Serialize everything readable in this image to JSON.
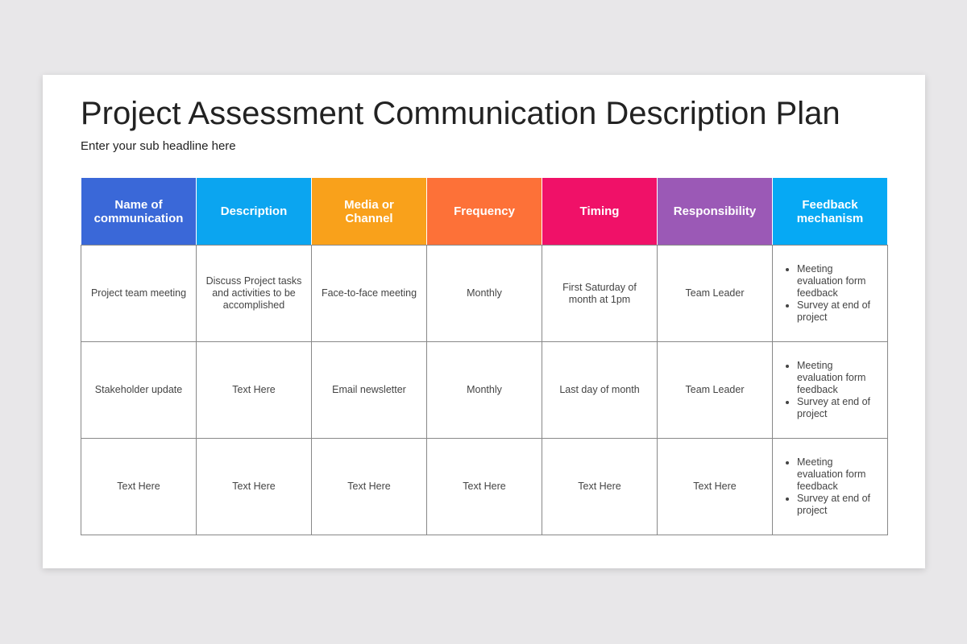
{
  "header": {
    "title": "Project Assessment Communication Description Plan",
    "subtitle": "Enter your sub headline here"
  },
  "table": {
    "columns": [
      "Name of communication",
      "Description",
      "Media or Channel",
      "Frequency",
      "Timing",
      "Responsibility",
      "Feedback mechanism"
    ],
    "rows": [
      [
        "Project team meeting",
        "Discuss Project tasks and activities to be accomplished",
        "Face-to-face meeting",
        "Monthly",
        "First Saturday of month at 1pm",
        "Team Leader",
        [
          "Meeting evaluation form feedback",
          "Survey at end of project"
        ]
      ],
      [
        "Stakeholder update",
        "Text Here",
        "Email newsletter",
        "Monthly",
        "Last day of month",
        "Team Leader",
        [
          "Meeting evaluation form feedback",
          "Survey at end of project"
        ]
      ],
      [
        "Text Here",
        "Text Here",
        "Text Here",
        "Text Here",
        "Text Here",
        "Text Here",
        [
          "Meeting evaluation form feedback",
          "Survey at end of project"
        ]
      ]
    ]
  }
}
